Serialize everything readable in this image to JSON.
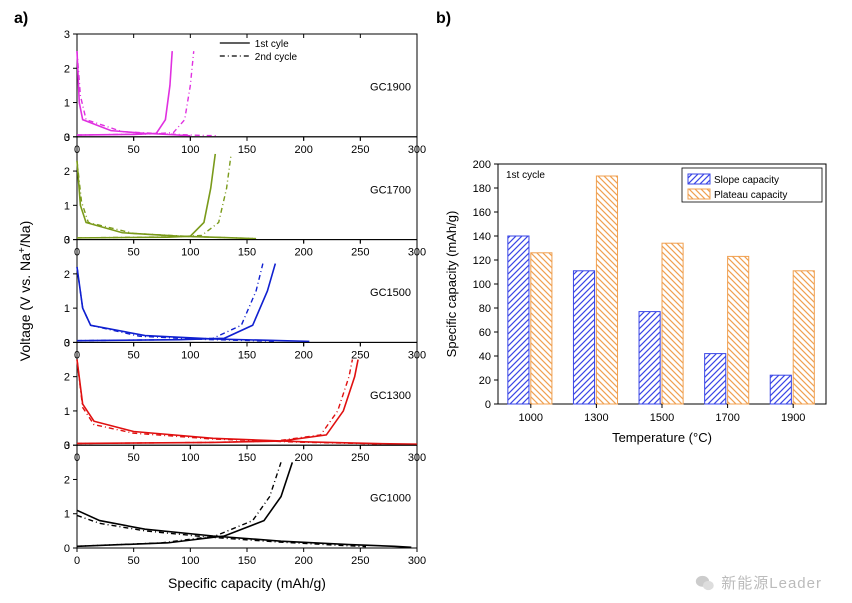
{
  "panelA": {
    "label": "a)",
    "xlabel": "Specific capacity (mAh/g)",
    "ylabel": "Voltage (V vs. Na+/Na)",
    "ylabel_sup": "+",
    "xlim": [
      0,
      300
    ],
    "xtick_step": 50,
    "ylim": [
      0,
      3
    ],
    "yticks": [
      0,
      1,
      2,
      3
    ],
    "label_fontsize": 14,
    "tick_fontsize": 11,
    "legend_items": [
      {
        "style": "solid",
        "label": "1st cyle"
      },
      {
        "style": "dash",
        "label": "2nd cycle"
      }
    ],
    "subplots": [
      {
        "name": "GC1900",
        "color": "#e030e0",
        "curves": {
          "solid_charge": [
            [
              0,
              0.05
            ],
            [
              50,
              0.07
            ],
            [
              70,
              0.1
            ],
            [
              78,
              0.5
            ],
            [
              82,
              1.5
            ],
            [
              84,
              2.5
            ]
          ],
          "solid_discharge": [
            [
              0,
              2.5
            ],
            [
              2,
              1.0
            ],
            [
              5,
              0.5
            ],
            [
              30,
              0.18
            ],
            [
              60,
              0.1
            ],
            [
              85,
              0.06
            ],
            [
              100,
              0.03
            ]
          ],
          "dash_charge": [
            [
              0,
              0.05
            ],
            [
              60,
              0.08
            ],
            [
              85,
              0.12
            ],
            [
              95,
              0.5
            ],
            [
              100,
              1.5
            ],
            [
              103,
              2.5
            ]
          ],
          "dash_discharge": [
            [
              0,
              2.5
            ],
            [
              3,
              1.2
            ],
            [
              8,
              0.5
            ],
            [
              40,
              0.15
            ],
            [
              80,
              0.08
            ],
            [
              110,
              0.04
            ],
            [
              125,
              0.03
            ]
          ]
        }
      },
      {
        "name": "GC1700",
        "color": "#7a9a1a",
        "curves": {
          "solid_charge": [
            [
              0,
              0.05
            ],
            [
              80,
              0.07
            ],
            [
              100,
              0.1
            ],
            [
              112,
              0.5
            ],
            [
              118,
              1.5
            ],
            [
              122,
              2.5
            ]
          ],
          "solid_discharge": [
            [
              0,
              2.3
            ],
            [
              3,
              1.0
            ],
            [
              8,
              0.5
            ],
            [
              40,
              0.2
            ],
            [
              90,
              0.1
            ],
            [
              130,
              0.06
            ],
            [
              155,
              0.03
            ]
          ],
          "dash_charge": [
            [
              0,
              0.05
            ],
            [
              85,
              0.08
            ],
            [
              110,
              0.12
            ],
            [
              125,
              0.5
            ],
            [
              132,
              1.5
            ],
            [
              136,
              2.5
            ]
          ],
          "dash_discharge": [
            [
              0,
              2.3
            ],
            [
              4,
              1.1
            ],
            [
              10,
              0.5
            ],
            [
              50,
              0.18
            ],
            [
              100,
              0.09
            ],
            [
              140,
              0.05
            ],
            [
              158,
              0.03
            ]
          ]
        }
      },
      {
        "name": "GC1500",
        "color": "#1020d0",
        "curves": {
          "solid_charge": [
            [
              0,
              0.05
            ],
            [
              90,
              0.08
            ],
            [
              130,
              0.12
            ],
            [
              155,
              0.5
            ],
            [
              168,
              1.5
            ],
            [
              175,
              2.3
            ]
          ],
          "solid_discharge": [
            [
              0,
              2.2
            ],
            [
              5,
              1.0
            ],
            [
              12,
              0.5
            ],
            [
              60,
              0.2
            ],
            [
              120,
              0.1
            ],
            [
              170,
              0.06
            ],
            [
              205,
              0.03
            ]
          ],
          "dash_charge": [
            [
              0,
              0.05
            ],
            [
              85,
              0.08
            ],
            [
              120,
              0.12
            ],
            [
              145,
              0.5
            ],
            [
              158,
              1.5
            ],
            [
              164,
              2.3
            ]
          ],
          "dash_discharge": [
            [
              0,
              2.2
            ],
            [
              5,
              1.0
            ],
            [
              12,
              0.5
            ],
            [
              55,
              0.18
            ],
            [
              110,
              0.09
            ],
            [
              155,
              0.05
            ],
            [
              175,
              0.03
            ]
          ]
        }
      },
      {
        "name": "GC1300",
        "color": "#e01010",
        "curves": {
          "solid_charge": [
            [
              0,
              0.05
            ],
            [
              120,
              0.08
            ],
            [
              180,
              0.12
            ],
            [
              220,
              0.3
            ],
            [
              235,
              1.0
            ],
            [
              245,
              2.0
            ],
            [
              248,
              2.5
            ]
          ],
          "solid_discharge": [
            [
              0,
              2.5
            ],
            [
              5,
              1.2
            ],
            [
              15,
              0.7
            ],
            [
              50,
              0.4
            ],
            [
              120,
              0.2
            ],
            [
              200,
              0.1
            ],
            [
              260,
              0.05
            ],
            [
              300,
              0.03
            ]
          ],
          "dash_charge": [
            [
              0,
              0.05
            ],
            [
              115,
              0.08
            ],
            [
              175,
              0.12
            ],
            [
              215,
              0.3
            ],
            [
              230,
              1.0
            ],
            [
              240,
              2.0
            ],
            [
              243,
              2.5
            ]
          ],
          "dash_discharge": [
            [
              0,
              2.5
            ],
            [
              5,
              1.1
            ],
            [
              15,
              0.6
            ],
            [
              50,
              0.35
            ],
            [
              120,
              0.18
            ],
            [
              195,
              0.09
            ],
            [
              250,
              0.05
            ],
            [
              270,
              0.03
            ]
          ]
        }
      },
      {
        "name": "GC1000",
        "color": "#000000",
        "curves": {
          "solid_charge": [
            [
              0,
              0.05
            ],
            [
              80,
              0.15
            ],
            [
              130,
              0.35
            ],
            [
              165,
              0.8
            ],
            [
              180,
              1.5
            ],
            [
              190,
              2.5
            ]
          ],
          "solid_discharge": [
            [
              0,
              1.1
            ],
            [
              20,
              0.8
            ],
            [
              60,
              0.55
            ],
            [
              120,
              0.35
            ],
            [
              180,
              0.2
            ],
            [
              240,
              0.1
            ],
            [
              280,
              0.05
            ],
            [
              295,
              0.02
            ]
          ],
          "dash_charge": [
            [
              0,
              0.05
            ],
            [
              75,
              0.15
            ],
            [
              122,
              0.35
            ],
            [
              155,
              0.8
            ],
            [
              170,
              1.5
            ],
            [
              180,
              2.5
            ]
          ],
          "dash_discharge": [
            [
              0,
              0.95
            ],
            [
              20,
              0.72
            ],
            [
              60,
              0.5
            ],
            [
              115,
              0.32
            ],
            [
              175,
              0.18
            ],
            [
              225,
              0.09
            ],
            [
              255,
              0.04
            ]
          ]
        }
      }
    ]
  },
  "panelB": {
    "label": "b)",
    "type": "bar",
    "title_inside": "1st cycle",
    "xlabel": "Temperature (°C)",
    "ylabel": "Specific capacity (mAh/g)",
    "ylim": [
      0,
      200
    ],
    "ytick_step": 20,
    "categories": [
      "1000",
      "1300",
      "1500",
      "1700",
      "1900"
    ],
    "series": [
      {
        "name": "Slope capacity",
        "color": "#3a46e6",
        "hatch": "///",
        "values": [
          140,
          111,
          77,
          42,
          24
        ]
      },
      {
        "name": "Plateau capacity",
        "color": "#f0a050",
        "hatch": "\\\\\\",
        "values": [
          126,
          190,
          134,
          123,
          111
        ]
      }
    ],
    "bar_group_width": 0.7,
    "label_fontsize": 13,
    "tick_fontsize": 11,
    "background_color": "#ffffff"
  },
  "watermark": "新能源Leader"
}
